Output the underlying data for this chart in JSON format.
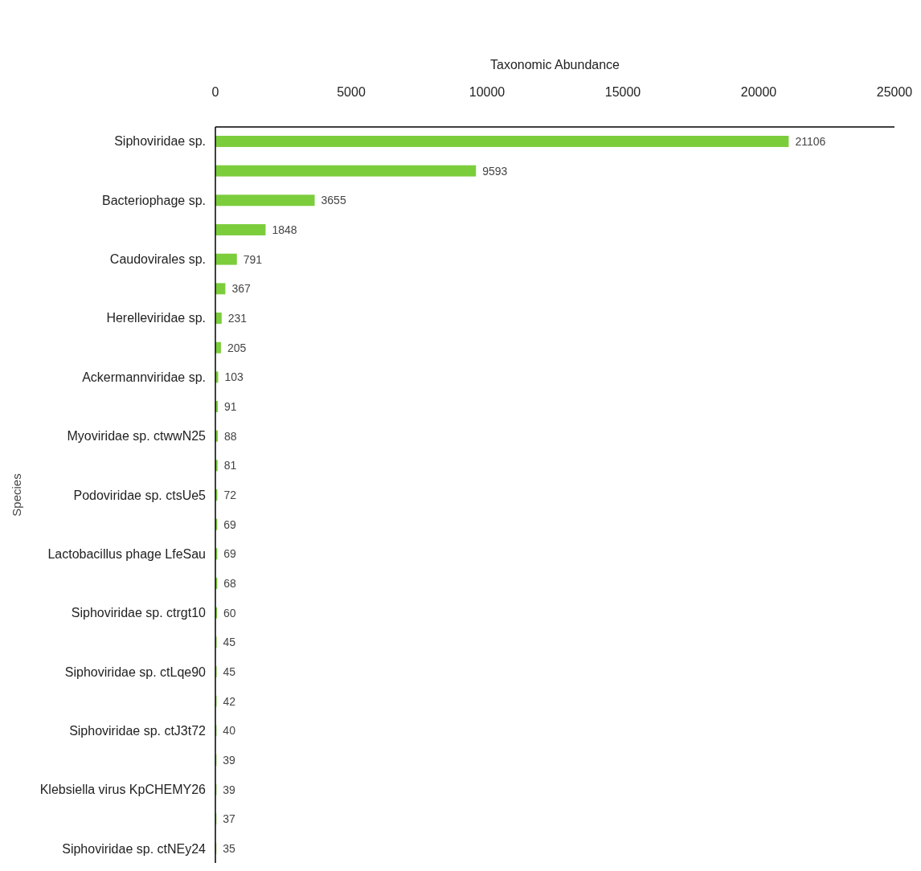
{
  "chart_data": {
    "type": "bar",
    "orientation": "horizontal",
    "xlabel": "Taxonomic Abundance",
    "ylabel": "Species",
    "categories": [
      "Siphoviridae sp.",
      null,
      "Bacteriophage sp.",
      null,
      "Caudovirales sp.",
      null,
      "Herelleviridae sp.",
      null,
      "Ackermannviridae sp.",
      null,
      "Myoviridae sp. ctwwN25",
      null,
      "Podoviridae sp. ctsUe5",
      null,
      "Lactobacillus phage LfeSau",
      null,
      "Siphoviridae sp. ctrgt10",
      null,
      "Siphoviridae sp. ctLqe90",
      null,
      "Siphoviridae sp. ctJ3t72",
      null,
      "Klebsiella virus KpCHEMY26",
      null,
      "Siphoviridae sp. ctNEy24"
    ],
    "values": [
      21106,
      9593,
      3655,
      1848,
      791,
      367,
      231,
      205,
      103,
      91,
      88,
      81,
      72,
      69,
      69,
      68,
      60,
      45,
      45,
      42,
      40,
      39,
      39,
      37,
      35
    ],
    "color": "#7ccd3c",
    "xlim": [
      0,
      25000
    ],
    "xticks": [
      0,
      5000,
      10000,
      15000,
      20000,
      25000
    ],
    "data_labels": true,
    "grid": false
  }
}
